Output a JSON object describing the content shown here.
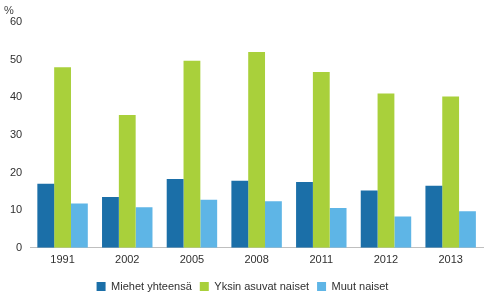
{
  "chart_data": {
    "type": "bar",
    "y_label": "%",
    "categories": [
      "1991",
      "2002",
      "2005",
      "2008",
      "2011",
      "2012",
      "2013"
    ],
    "series": [
      {
        "name": "Miehet yhteensä",
        "color": "#1b6fa8",
        "values": [
          17,
          13.5,
          18.3,
          17.8,
          17.5,
          15.2,
          16.5
        ]
      },
      {
        "name": "Yksin asuvat naiset",
        "color": "#a9d03b",
        "values": [
          48,
          35.3,
          49.7,
          52,
          46.7,
          41,
          40.2
        ]
      },
      {
        "name": "Muut naiset",
        "color": "#5eb5e6",
        "values": [
          11.8,
          10.8,
          12.8,
          12.4,
          10.6,
          8.3,
          9.7
        ]
      }
    ],
    "ylim": [
      0,
      60
    ],
    "yticks": [
      0,
      10,
      20,
      30,
      40,
      50,
      60
    ],
    "grid": false,
    "legend": "bottom"
  }
}
